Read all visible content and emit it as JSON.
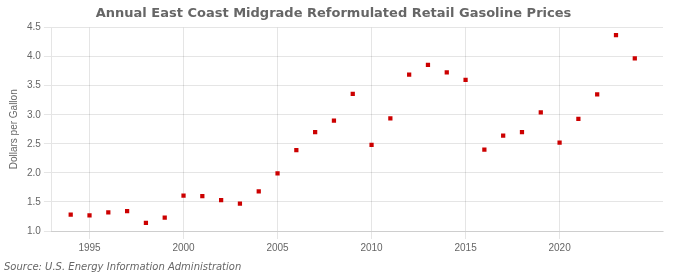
{
  "chart_data": {
    "type": "scatter",
    "title": "Annual East Coast Midgrade Reformulated Retail Gasoline Prices",
    "y_label": "Dollars per Gallon",
    "annotations": [
      "Source: U.S. Energy Information Administration"
    ],
    "x": [
      1994,
      1995,
      1996,
      1997,
      1998,
      1999,
      2000,
      2001,
      2002,
      2003,
      2004,
      2005,
      2006,
      2007,
      2008,
      2009,
      2010,
      2011,
      2012,
      2013,
      2014,
      2015,
      2016,
      2017,
      2018,
      2019,
      2020,
      2021,
      2022,
      2023,
      2024
    ],
    "values": [
      1.28,
      1.27,
      1.32,
      1.34,
      1.14,
      1.23,
      1.61,
      1.6,
      1.53,
      1.47,
      1.68,
      1.99,
      2.39,
      2.7,
      2.9,
      3.36,
      2.48,
      2.94,
      3.69,
      3.86,
      3.73,
      3.6,
      2.4,
      2.64,
      2.7,
      3.04,
      2.52,
      2.93,
      3.35,
      4.37,
      3.97
    ],
    "color": "#cc0000",
    "marker": "square",
    "xlim": [
      1993,
      2025.5
    ],
    "ylim": [
      1.0,
      4.5
    ],
    "xticks": [
      1995,
      2000,
      2005,
      2010,
      2015,
      2020
    ],
    "yticks": [
      {
        "value": 1,
        "label": "1.0"
      },
      1.5,
      {
        "value": 2,
        "label": "2.0"
      },
      2.5,
      {
        "value": 3,
        "label": "3.0"
      },
      3.5,
      {
        "value": 4,
        "label": "4.0"
      },
      4.5
    ],
    "grid": true
  }
}
